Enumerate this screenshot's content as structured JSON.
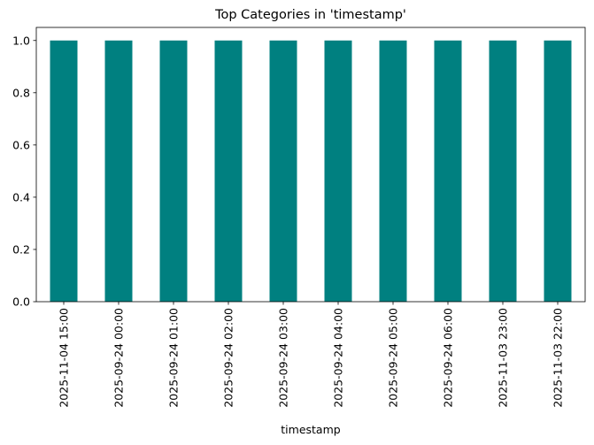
{
  "chart_data": {
    "type": "bar",
    "title": "Top Categories in 'timestamp'",
    "xlabel": "timestamp",
    "ylabel": "",
    "categories": [
      "2025-11-04 15:00",
      "2025-09-24 00:00",
      "2025-09-24 01:00",
      "2025-09-24 02:00",
      "2025-09-24 03:00",
      "2025-09-24 04:00",
      "2025-09-24 05:00",
      "2025-09-24 06:00",
      "2025-11-03 23:00",
      "2025-11-03 22:00"
    ],
    "values": [
      1,
      1,
      1,
      1,
      1,
      1,
      1,
      1,
      1,
      1
    ],
    "ylim": [
      0,
      1.05
    ],
    "yticks": [
      "0.0",
      "0.2",
      "0.4",
      "0.6",
      "0.8",
      "1.0"
    ],
    "bar_color": "#008080",
    "grid": false,
    "legend": "none"
  }
}
